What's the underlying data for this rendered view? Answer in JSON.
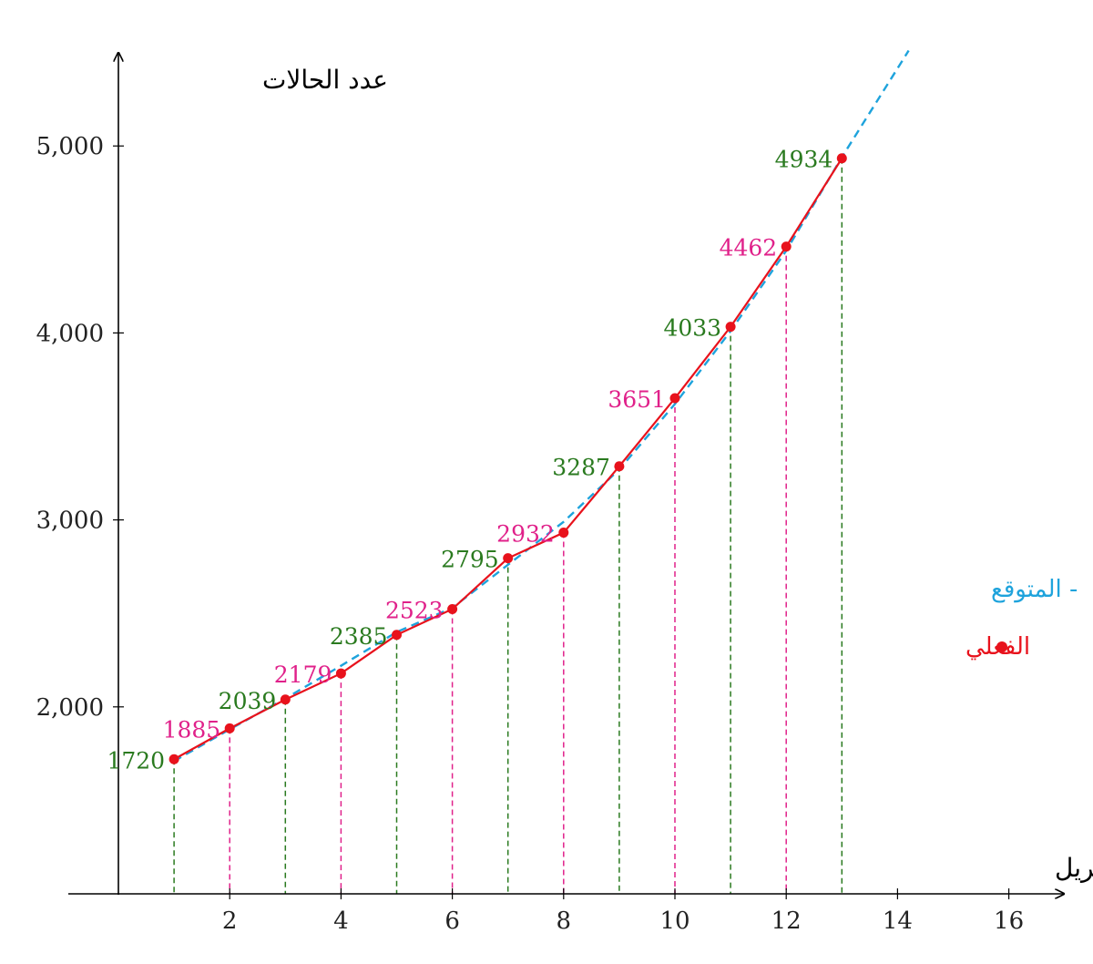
{
  "chart_data": {
    "type": "line",
    "xlabel": "إبريل",
    "ylabel": "عدد الحالات",
    "xlim": [
      0,
      17
    ],
    "ylim": [
      1000,
      5500
    ],
    "x_ticks": [
      2,
      4,
      6,
      8,
      10,
      12,
      14,
      16
    ],
    "x_tick_labels": [
      "2",
      "4",
      "6",
      "8",
      "10",
      "12",
      "14",
      "16"
    ],
    "y_ticks": [
      2000,
      3000,
      4000,
      5000
    ],
    "y_tick_labels": [
      "2,000",
      "3,000",
      "4,000",
      "5,000"
    ],
    "grid": false,
    "legend_position": "right",
    "series": [
      {
        "name": "الفعلي",
        "color": "#e8121c",
        "style": "solid-with-markers",
        "x": [
          1,
          2,
          3,
          4,
          5,
          6,
          7,
          8,
          9,
          10,
          11,
          12,
          13
        ],
        "values": [
          1720,
          1885,
          2039,
          2179,
          2385,
          2523,
          2795,
          2932,
          3287,
          3651,
          4033,
          4462,
          4934
        ]
      },
      {
        "name": "المتوقع",
        "color": "#1ea3dc",
        "style": "dashed",
        "x": [
          1,
          2,
          3,
          4,
          5,
          6,
          7,
          8,
          9,
          10,
          11,
          12,
          13,
          14.2
        ],
        "values": [
          1710,
          1880,
          2045,
          2220,
          2400,
          2530,
          2760,
          2990,
          3270,
          3620,
          4010,
          4440,
          4940,
          5510
        ]
      }
    ],
    "point_labels": [
      "1720",
      "1885",
      "2039",
      "2179",
      "2385",
      "2523",
      "2795",
      "2932",
      "3287",
      "3651",
      "4033",
      "4462",
      "4934"
    ],
    "label_colors": {
      "odd": "#2a7a1f",
      "even": "#e0218a"
    },
    "legend": [
      {
        "label": "- المتوقع",
        "color": "#1ea3dc",
        "marker": "none"
      },
      {
        "label": "الفعلي",
        "color": "#e8121c",
        "marker": "dot"
      }
    ]
  }
}
